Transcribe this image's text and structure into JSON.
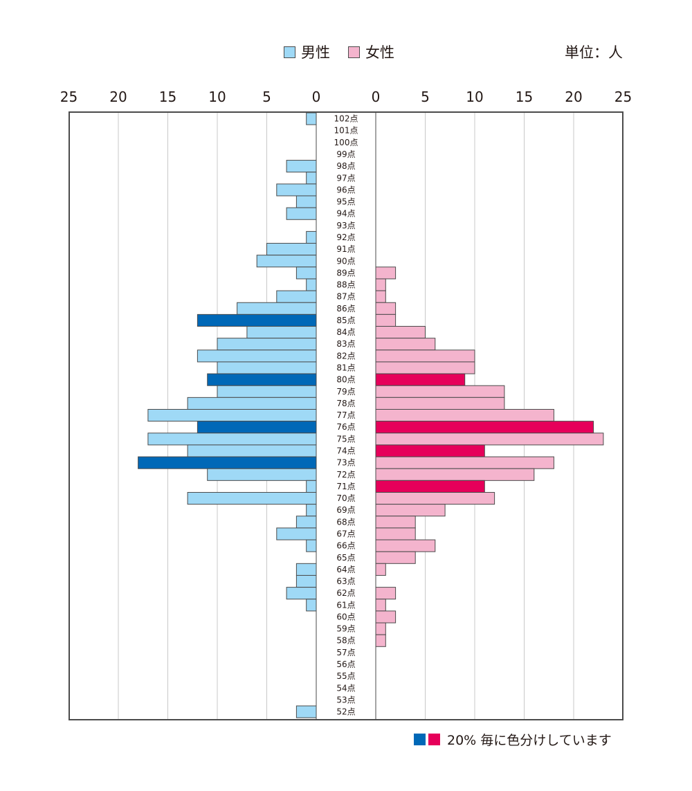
{
  "legend": {
    "male_label": "男性",
    "female_label": "女性",
    "unit_label": "単位：人"
  },
  "note": {
    "text": "20% 毎に色分けしています",
    "colors": [
      "#0068b7",
      "#e6005a"
    ]
  },
  "colors": {
    "male": "#9fd9f6",
    "male_highlight": "#0068b7",
    "female": "#f4b4cd",
    "female_highlight": "#e6005a",
    "bar_stroke": "#4a4a4a",
    "grid": "#c8c8c8"
  },
  "chart_data": {
    "type": "bar",
    "orientation": "horizontal-pyramid",
    "title": "",
    "xlim": [
      0,
      25
    ],
    "x_ticks": [
      "0",
      "5",
      "10",
      "15",
      "20",
      "25"
    ],
    "grid": true,
    "categories": [
      "102点",
      "101点",
      "100点",
      "99点",
      "98点",
      "97点",
      "96点",
      "95点",
      "94点",
      "93点",
      "92点",
      "91点",
      "90点",
      "89点",
      "88点",
      "87点",
      "86点",
      "85点",
      "84点",
      "83点",
      "82点",
      "81点",
      "80点",
      "79点",
      "78点",
      "77点",
      "76点",
      "75点",
      "74点",
      "73点",
      "72点",
      "71点",
      "70点",
      "69点",
      "68点",
      "67点",
      "66点",
      "65点",
      "64点",
      "63点",
      "62点",
      "61点",
      "60点",
      "59点",
      "58点",
      "57点",
      "56点",
      "55点",
      "54点",
      "53点",
      "52点"
    ],
    "series": [
      {
        "name": "男性",
        "side": "left",
        "values": [
          1,
          0,
          0,
          0,
          3,
          1,
          4,
          2,
          3,
          0,
          1,
          5,
          6,
          2,
          1,
          4,
          8,
          12,
          7,
          10,
          12,
          10,
          11,
          10,
          13,
          17,
          12,
          17,
          13,
          18,
          11,
          1,
          13,
          1,
          2,
          4,
          1,
          0,
          2,
          2,
          3,
          1,
          0,
          0,
          0,
          0,
          0,
          0,
          0,
          0,
          2
        ],
        "highlight": [
          "85点",
          "80点",
          "76点",
          "73点"
        ]
      },
      {
        "name": "女性",
        "side": "right",
        "values": [
          0,
          0,
          0,
          0,
          0,
          0,
          0,
          0,
          0,
          0,
          0,
          0,
          0,
          2,
          1,
          1,
          2,
          2,
          5,
          6,
          10,
          10,
          9,
          13,
          13,
          18,
          22,
          23,
          11,
          18,
          16,
          11,
          12,
          7,
          4,
          4,
          6,
          4,
          1,
          0,
          2,
          1,
          2,
          1,
          1,
          0,
          0,
          0,
          0,
          0,
          0
        ],
        "highlight": [
          "80点",
          "76点",
          "74点",
          "71点"
        ]
      }
    ]
  }
}
